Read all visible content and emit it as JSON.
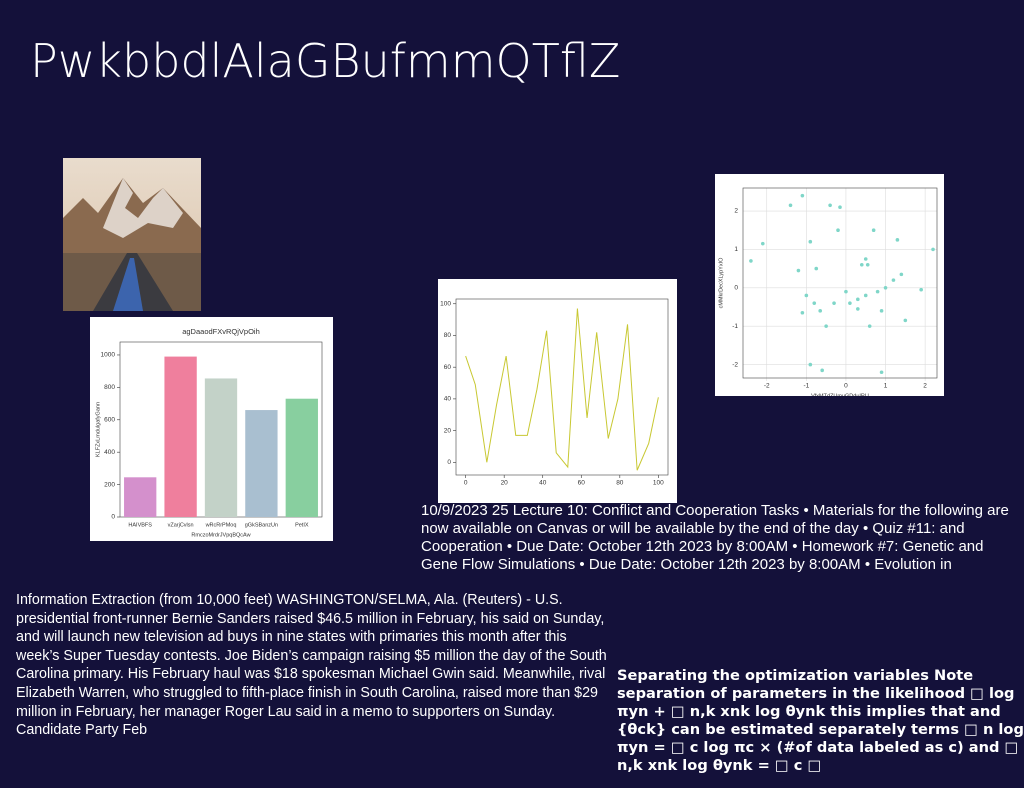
{
  "title": "PwkbbdlAlaGBufmmQTflZ",
  "lecture_text": "10/9/2023 25 Lecture 10: Conflict and Cooperation Tasks • Materials for the following are now available on Canvas or will be available by the end of the day • Quiz #11: and Cooperation • Due Date: October 12th 2023 by 8:00AM • Homework #7: Genetic and Gene Flow Simulations • Due Date: October 12th 2023 by 8:00AM • Evolution in",
  "news_text": "Information Extraction (from 10,000 feet) WASHINGTON/SELMA, Ala. (Reuters) - U.S. presidential front-runner Bernie Sanders raised $46.5 million in February, his said on Sunday, and will launch new television ad buys in nine states with primaries this month after this week’s Super Tuesday contests. Joe Biden’s campaign raising $5 million the day of the South Carolina primary. His February haul was $18 spokesman Michael Gwin said. Meanwhile, rival Elizabeth Warren, who struggled to fifth-place finish in South Carolina, raised more than $29 million in February, her manager Roger Lau said in a memo to supporters on Sunday. Candidate Party Feb",
  "ml_text": "Separating the optimization variables Note separation of parameters in the likelihood □ log πyn + □ n,k xnk log θynk this implies that and {θck} can be estimated separately terms □ n log πyn = □ c log πc × (#of data labeled as c) and □ n,k xnk log θynk = □ c □",
  "chart_data": [
    {
      "type": "bar",
      "title": "agDaaodFXvRQjVpOih",
      "x_label": "RmczoMrdrJVpqBQcAw",
      "y_label": "KLFZxLmdulgafyGann",
      "categories": [
        "HAIVBFS",
        "vZarjCvlsn",
        "wRcRrPMoq",
        "gGkSBanzUn",
        "PetIX"
      ],
      "values": [
        245,
        990,
        855,
        660,
        730
      ],
      "colors": [
        "#d490cc",
        "#ef7f9d",
        "#c3d2c8",
        "#a9bfd0",
        "#88cf9f"
      ],
      "ylim": [
        0,
        1080
      ],
      "yticks": [
        0,
        200,
        400,
        600,
        800,
        1000
      ]
    },
    {
      "type": "line",
      "color": "#c8c832",
      "x": [
        0,
        5,
        11,
        16,
        21,
        26,
        32,
        37,
        42,
        47,
        53,
        58,
        63,
        68,
        74,
        79,
        84,
        89,
        95,
        100
      ],
      "values": [
        67,
        49,
        0,
        36,
        67,
        17,
        17,
        46,
        83,
        6,
        -3,
        97,
        28,
        82,
        15,
        40,
        87,
        -5,
        12,
        41
      ],
      "xlim": [
        -5,
        105
      ],
      "ylim": [
        -8,
        103
      ],
      "xticks": [
        0,
        20,
        40,
        60,
        80,
        100
      ],
      "yticks": [
        0,
        20,
        40,
        60,
        80,
        100
      ]
    },
    {
      "type": "scatter",
      "color": "#7fd6c8",
      "x_label": "VfxMTdZUmuGDduIRU",
      "y_label": "cMMkrDecXLypYxIO",
      "grid": true,
      "x": [
        -2.4,
        -2.1,
        -1.4,
        -1.1,
        -1.2,
        -0.9,
        -1.0,
        -0.8,
        -1.1,
        -0.65,
        -0.5,
        -0.3,
        -0.4,
        -0.15,
        -0.2,
        0.0,
        0.1,
        0.3,
        0.4,
        0.5,
        0.5,
        0.6,
        0.7,
        0.8,
        0.9,
        1.0,
        1.2,
        1.3,
        1.4,
        1.5,
        1.9,
        2.2,
        -0.9,
        -0.6,
        0.9,
        0.3,
        -0.75,
        0.55
      ],
      "y": [
        0.7,
        1.15,
        2.15,
        2.4,
        0.45,
        1.2,
        -0.2,
        -0.4,
        -0.65,
        -0.6,
        -1.0,
        -0.4,
        2.15,
        2.1,
        1.5,
        -0.1,
        -0.4,
        -0.3,
        0.6,
        0.75,
        -0.2,
        -1.0,
        1.5,
        -0.1,
        -0.6,
        0.0,
        0.2,
        1.25,
        0.35,
        -0.85,
        -0.05,
        1.0,
        -2.0,
        -2.15,
        -2.2,
        -0.55,
        0.5,
        0.6
      ],
      "xlim": [
        -2.6,
        2.3
      ],
      "ylim": [
        -2.35,
        2.6
      ],
      "xticks": [
        -2,
        -1,
        0,
        1,
        2
      ],
      "yticks": [
        -2,
        -1,
        0,
        1,
        2
      ]
    }
  ]
}
